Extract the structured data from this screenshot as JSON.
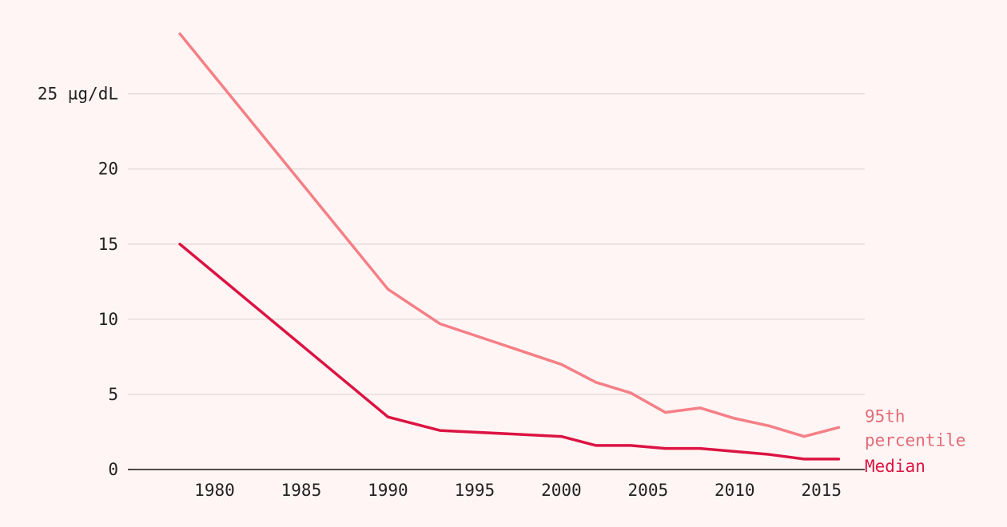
{
  "colors": {
    "background": "#fff5f4",
    "grid": "#dcd4d4",
    "axis": "#111111",
    "tick_text": "#222222",
    "p95": "#f57f86",
    "p95_label": "#e36b78",
    "median": "#dc1443"
  },
  "chart_data": {
    "type": "line",
    "title": "",
    "xlabel": "",
    "ylabel": "",
    "xlim": [
      1975,
      2017.5
    ],
    "ylim": [
      0,
      30
    ],
    "grid": true,
    "x_ticks": [
      1980,
      1985,
      1990,
      1995,
      2000,
      2005,
      2010,
      2015
    ],
    "y_ticks": [
      {
        "value": 0,
        "label": "0"
      },
      {
        "value": 5,
        "label": "5"
      },
      {
        "value": 10,
        "label": "10"
      },
      {
        "value": 15,
        "label": "15"
      },
      {
        "value": 20,
        "label": "20"
      },
      {
        "value": 25,
        "label": "25 µg/dL"
      }
    ],
    "series": [
      {
        "name": "95th percentile",
        "label_lines": [
          "95th",
          "percentile"
        ],
        "color_key": "p95",
        "label_color_key": "p95_label",
        "points": [
          {
            "x": 1978,
            "y": 29.0
          },
          {
            "x": 1990,
            "y": 12.0
          },
          {
            "x": 1993,
            "y": 9.7
          },
          {
            "x": 2000,
            "y": 7.0
          },
          {
            "x": 2002,
            "y": 5.8
          },
          {
            "x": 2004,
            "y": 5.1
          },
          {
            "x": 2006,
            "y": 3.8
          },
          {
            "x": 2008,
            "y": 4.1
          },
          {
            "x": 2010,
            "y": 3.4
          },
          {
            "x": 2012,
            "y": 2.9
          },
          {
            "x": 2014,
            "y": 2.2
          },
          {
            "x": 2016,
            "y": 2.8
          }
        ]
      },
      {
        "name": "Median",
        "label_lines": [
          "Median"
        ],
        "color_key": "median",
        "label_color_key": "median",
        "points": [
          {
            "x": 1978,
            "y": 15.0
          },
          {
            "x": 1990,
            "y": 3.5
          },
          {
            "x": 1993,
            "y": 2.6
          },
          {
            "x": 2000,
            "y": 2.2
          },
          {
            "x": 2002,
            "y": 1.6
          },
          {
            "x": 2004,
            "y": 1.6
          },
          {
            "x": 2006,
            "y": 1.4
          },
          {
            "x": 2008,
            "y": 1.4
          },
          {
            "x": 2010,
            "y": 1.2
          },
          {
            "x": 2012,
            "y": 1.0
          },
          {
            "x": 2014,
            "y": 0.7
          },
          {
            "x": 2016,
            "y": 0.7
          }
        ]
      }
    ]
  }
}
